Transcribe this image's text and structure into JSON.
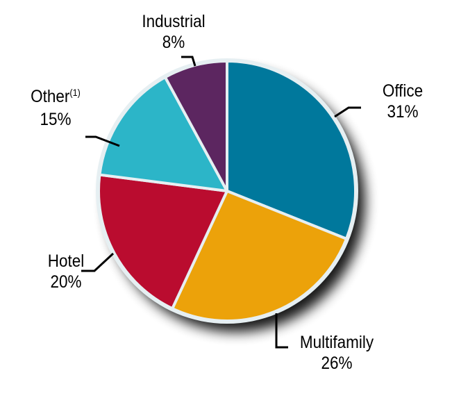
{
  "chart_data": {
    "type": "pie",
    "title": "",
    "categories": [
      "Office",
      "Multifamily",
      "Hotel",
      "Other(1)",
      "Industrial"
    ],
    "values": [
      31,
      26,
      20,
      15,
      8
    ],
    "unit": "%",
    "colors": [
      "#00789c",
      "#eca20a",
      "#ba0c2f",
      "#2cb5c8",
      "#5c2660"
    ],
    "start_angle_deg": 0,
    "direction": "clockwise from 12 o'clock",
    "legend": "none (leader-line labels)",
    "labels": [
      {
        "name": "Office",
        "pct": "31%"
      },
      {
        "name": "Multifamily",
        "pct": "26%"
      },
      {
        "name": "Hotel",
        "pct": "20%"
      },
      {
        "name": "Other",
        "footnote": "(1)",
        "pct": "15%"
      },
      {
        "name": "Industrial",
        "pct": "8%"
      }
    ]
  }
}
